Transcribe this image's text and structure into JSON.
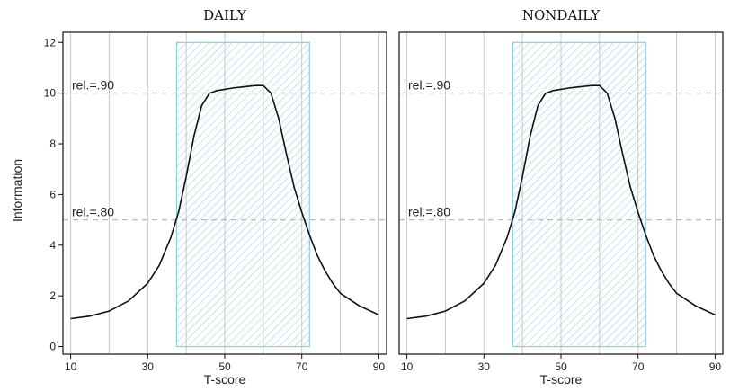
{
  "chart_data": {
    "type": "line",
    "ylabel": "Information",
    "ylim": [
      -0.3,
      12.4
    ],
    "yticks": [
      0,
      2,
      4,
      6,
      8,
      10,
      12
    ],
    "xlim": [
      8,
      92
    ],
    "xticks": [
      10,
      30,
      50,
      70,
      90
    ],
    "xgrid": [
      10,
      20,
      30,
      40,
      50,
      60,
      70,
      80,
      90
    ],
    "colors": {
      "curve": "#111111",
      "band": "#8fcde0",
      "reference": "#bbbbbb",
      "grid": "#c8c8c8"
    },
    "panels": [
      {
        "title": "DAILY",
        "xlabel": "T-score",
        "band": {
          "x0": 37.5,
          "x1": 72,
          "y0": 0,
          "y1": 12
        },
        "reference_lines": [
          {
            "label": "rel.=.90",
            "y": 10
          },
          {
            "label": "rel.=.80",
            "y": 5
          }
        ],
        "series": [
          {
            "x": [
              10,
              15,
              20,
              25,
              30,
              33,
              36,
              38,
              40,
              42,
              44,
              46,
              48,
              50,
              52,
              55,
              58,
              60,
              62,
              64,
              66,
              68,
              70,
              72,
              74,
              76,
              78,
              80,
              85,
              90
            ],
            "values": [
              1.1,
              1.2,
              1.4,
              1.8,
              2.5,
              3.2,
              4.3,
              5.3,
              6.7,
              8.3,
              9.5,
              10.0,
              10.1,
              10.15,
              10.2,
              10.25,
              10.3,
              10.3,
              10.0,
              9.0,
              7.6,
              6.3,
              5.3,
              4.4,
              3.6,
              3.0,
              2.5,
              2.1,
              1.6,
              1.25
            ]
          }
        ]
      },
      {
        "title": "NONDAILY",
        "xlabel": "T-score",
        "band": {
          "x0": 37.5,
          "x1": 72,
          "y0": 0,
          "y1": 12
        },
        "reference_lines": [
          {
            "label": "rel.=.90",
            "y": 10
          },
          {
            "label": "rel.=.80",
            "y": 5
          }
        ],
        "series": [
          {
            "x": [
              10,
              15,
              20,
              25,
              30,
              33,
              36,
              38,
              40,
              42,
              44,
              46,
              48,
              50,
              52,
              55,
              58,
              60,
              62,
              64,
              66,
              68,
              70,
              72,
              74,
              76,
              78,
              80,
              85,
              90
            ],
            "values": [
              1.1,
              1.2,
              1.4,
              1.8,
              2.5,
              3.2,
              4.3,
              5.3,
              6.7,
              8.3,
              9.5,
              10.0,
              10.1,
              10.15,
              10.2,
              10.25,
              10.3,
              10.3,
              10.0,
              9.0,
              7.6,
              6.3,
              5.3,
              4.4,
              3.6,
              3.0,
              2.5,
              2.1,
              1.6,
              1.25
            ]
          }
        ]
      }
    ]
  }
}
